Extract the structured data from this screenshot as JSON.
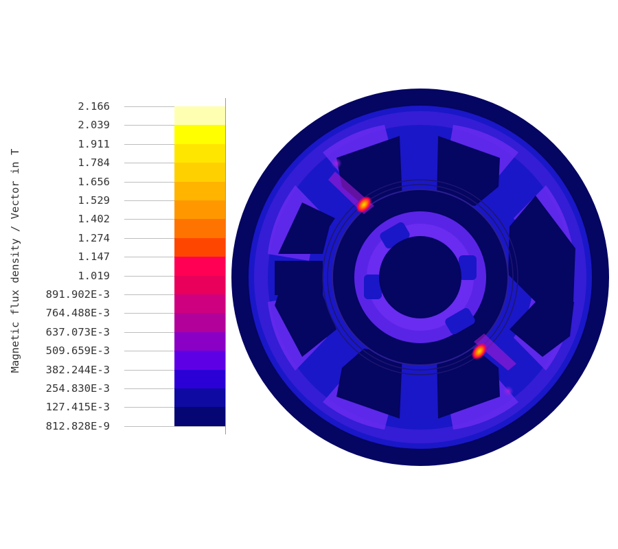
{
  "legend": {
    "title": "Magnetic flux density / Vector in T",
    "levels": [
      "2.166",
      "2.039",
      "1.911",
      "1.784",
      "1.656",
      "1.529",
      "1.402",
      "1.274",
      "1.147",
      "1.019",
      "891.902E-3",
      "764.488E-3",
      "637.073E-3",
      "509.659E-3",
      "382.244E-3",
      "254.830E-3",
      "127.415E-3",
      "812.828E-9"
    ],
    "colors": [
      "#ffffb2",
      "#ffff00",
      "#ffe600",
      "#ffd000",
      "#ffb400",
      "#ff9800",
      "#ff7300",
      "#ff4600",
      "#ff0055",
      "#e8005a",
      "#cf0080",
      "#b2009a",
      "#8a00c4",
      "#5e00e6",
      "#2a00d6",
      "#0e0aa2",
      "#050573"
    ]
  },
  "palette": {
    "background": "#050562",
    "low_field": "#1a17c8",
    "mid_field": "#4a22e0",
    "raised_field": "#6a2cf0",
    "hotspot": "#ff7a00",
    "hotspot_core": "#ffe000",
    "saturation": "#ff0050"
  }
}
